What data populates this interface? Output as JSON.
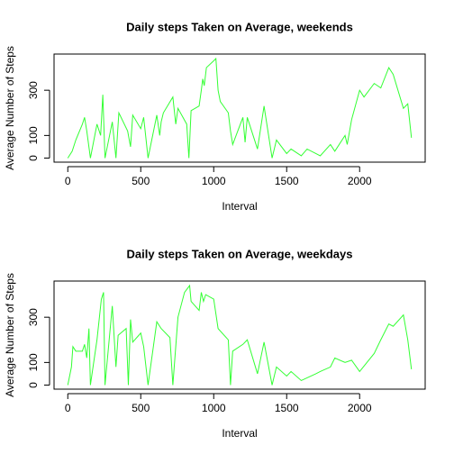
{
  "chart_data": [
    {
      "type": "line",
      "title": "Daily steps Taken on Average, weekends",
      "xlabel": "Interval",
      "ylabel": "Average Number of Steps",
      "color": "#33ff33",
      "xlim": [
        -94.2,
        2449.2
      ],
      "ylim": [
        -18,
        460
      ],
      "xticks": [
        0,
        500,
        1000,
        1500,
        2000
      ],
      "yticks": [
        0,
        100,
        300
      ],
      "x": [
        0,
        30,
        55,
        100,
        115,
        130,
        155,
        200,
        225,
        240,
        255,
        305,
        330,
        350,
        410,
        430,
        445,
        500,
        520,
        550,
        610,
        630,
        640,
        655,
        720,
        740,
        755,
        815,
        830,
        845,
        900,
        915,
        925,
        935,
        950,
        1000,
        1015,
        1030,
        1045,
        1100,
        1115,
        1130,
        1200,
        1215,
        1230,
        1300,
        1345,
        1400,
        1430,
        1500,
        1530,
        1600,
        1640,
        1700,
        1730,
        1800,
        1830,
        1900,
        1915,
        1945,
        2000,
        2030,
        2100,
        2145,
        2200,
        2230,
        2300,
        2330,
        2355
      ],
      "values": [
        0,
        30,
        80,
        150,
        180,
        120,
        0,
        150,
        100,
        280,
        0,
        160,
        0,
        200,
        120,
        50,
        190,
        130,
        180,
        0,
        190,
        100,
        160,
        200,
        270,
        150,
        220,
        150,
        0,
        210,
        230,
        300,
        350,
        320,
        400,
        430,
        440,
        300,
        250,
        200,
        120,
        60,
        180,
        70,
        180,
        40,
        230,
        0,
        80,
        20,
        40,
        10,
        40,
        20,
        10,
        60,
        30,
        100,
        60,
        170,
        300,
        270,
        330,
        310,
        400,
        370,
        220,
        240,
        90
      ]
    },
    {
      "type": "line",
      "title": "Daily steps Taken on Average, weekdays",
      "xlabel": "Interval",
      "ylabel": "Average Number of Steps",
      "color": "#33ff33",
      "xlim": [
        -94.2,
        2449.2
      ],
      "ylim": [
        -18,
        460
      ],
      "xticks": [
        0,
        500,
        1000,
        1500,
        2000
      ],
      "yticks": [
        0,
        100,
        300
      ],
      "x": [
        0,
        25,
        35,
        55,
        100,
        115,
        130,
        145,
        155,
        200,
        230,
        245,
        255,
        305,
        330,
        345,
        400,
        415,
        430,
        445,
        500,
        520,
        550,
        610,
        640,
        700,
        720,
        755,
        800,
        835,
        845,
        900,
        915,
        930,
        945,
        1000,
        1030,
        1100,
        1115,
        1130,
        1200,
        1230,
        1300,
        1345,
        1400,
        1430,
        1500,
        1530,
        1600,
        1700,
        1730,
        1800,
        1830,
        1900,
        1945,
        2000,
        2100,
        2145,
        2200,
        2230,
        2300,
        2330,
        2355
      ],
      "values": [
        0,
        80,
        170,
        150,
        150,
        180,
        120,
        250,
        0,
        200,
        380,
        410,
        0,
        350,
        80,
        220,
        250,
        0,
        290,
        190,
        230,
        170,
        0,
        280,
        250,
        210,
        0,
        300,
        410,
        440,
        370,
        330,
        410,
        370,
        400,
        380,
        250,
        200,
        0,
        150,
        180,
        200,
        50,
        190,
        0,
        80,
        40,
        60,
        20,
        50,
        60,
        80,
        120,
        100,
        110,
        60,
        140,
        200,
        270,
        260,
        310,
        200,
        70
      ]
    }
  ]
}
